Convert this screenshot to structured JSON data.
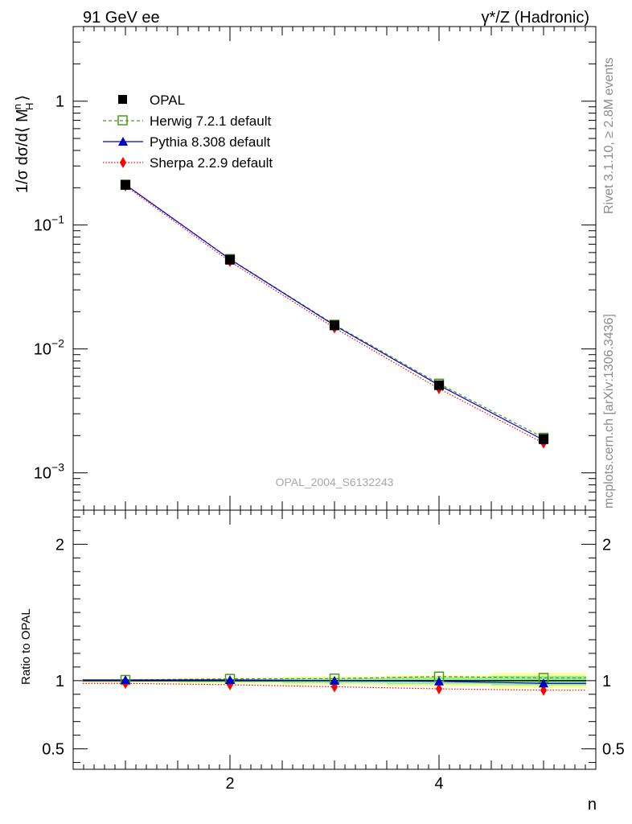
{
  "header": {
    "left": "91 GeV ee",
    "right": "γ*/Z (Hadronic)"
  },
  "side_text": {
    "rivet": "Rivet 3.1.10, ≥ 2.8M events",
    "mcplots": "mcplots.cern.ch [arXiv:1306.3436]"
  },
  "watermark": "OPAL_2004_S6132243",
  "colors": {
    "data": "#000000",
    "herwig": "#4a9a1a",
    "pythia": "#0000cc",
    "sherpa": "#ff0000",
    "band_yellow": "#ffff99",
    "band_green": "#99ee99"
  },
  "chart_data": [
    {
      "type": "line",
      "panel": "main",
      "ylabel_main": "1/σ dσ/d⟨ M",
      "ylabel_sup": "n",
      "ylabel_sub": "H",
      "ylabel_end": "⟩",
      "yscale": "log",
      "xlim": [
        0.5,
        5.5
      ],
      "ylim": [
        0.0005,
        4.0
      ],
      "y_ticks": [
        {
          "value": 1,
          "label": "1"
        },
        {
          "value": 0.1,
          "label": "10",
          "exp": "−1"
        },
        {
          "value": 0.01,
          "label": "10",
          "exp": "−2"
        },
        {
          "value": 0.001,
          "label": "10",
          "exp": "−3"
        }
      ],
      "x": [
        1,
        2,
        3,
        4,
        5
      ],
      "series": [
        {
          "name": "OPAL",
          "key": "data",
          "values": [
            0.211,
            0.0525,
            0.0155,
            0.0051,
            0.00188
          ]
        },
        {
          "name": "Herwig 7.2.1 default",
          "key": "herwig",
          "values": [
            0.212,
            0.0532,
            0.0157,
            0.00525,
            0.00192
          ]
        },
        {
          "name": "Pythia 8.308 default",
          "key": "pythia",
          "values": [
            0.212,
            0.053,
            0.0155,
            0.0051,
            0.00184
          ]
        },
        {
          "name": "Sherpa 2.2.9 default",
          "key": "sherpa",
          "values": [
            0.207,
            0.0508,
            0.0148,
            0.00478,
            0.00174
          ]
        }
      ]
    },
    {
      "type": "line",
      "panel": "ratio",
      "ylabel": "Ratio to OPAL",
      "xlabel": "n",
      "xlim": [
        0.5,
        5.5
      ],
      "ylim": [
        0.35,
        2.25
      ],
      "y_ticks": [
        {
          "value": 2,
          "label": "2"
        },
        {
          "value": 1,
          "label": "1"
        },
        {
          "value": 0.5,
          "label": "0.5"
        }
      ],
      "x_ticks": [
        {
          "value": 2,
          "label": "2"
        },
        {
          "value": 4,
          "label": "4"
        }
      ],
      "x": [
        1,
        2,
        3,
        4,
        5
      ],
      "band_yellow_halfwidth": [
        0.015,
        0.02,
        0.03,
        0.04,
        0.055
      ],
      "band_green_halfwidth": [
        0.008,
        0.012,
        0.018,
        0.026,
        0.035
      ],
      "series": [
        {
          "name": "Herwig 7.2.1 default",
          "key": "herwig",
          "values": [
            1.005,
            1.013,
            1.015,
            1.03,
            1.02
          ]
        },
        {
          "name": "Pythia 8.308 default",
          "key": "pythia",
          "values": [
            1.005,
            1.005,
            1.0,
            0.995,
            0.98
          ]
        },
        {
          "name": "Sherpa 2.2.9 default",
          "key": "sherpa",
          "values": [
            0.98,
            0.97,
            0.955,
            0.94,
            0.93
          ]
        }
      ]
    }
  ]
}
